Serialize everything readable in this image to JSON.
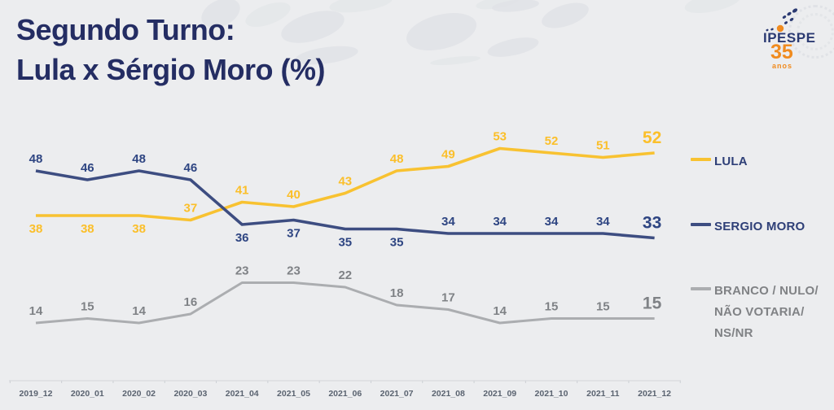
{
  "title": {
    "line1": "Segundo Turno:",
    "line2": "Lula x Sérgio Moro (%)"
  },
  "logo": {
    "text": "IPESPE",
    "number": "35",
    "suffix": "anos"
  },
  "colors": {
    "background": "#ecedef",
    "title": "#242d63",
    "axis_line": "#d8dade",
    "axis_tick": "#cdd0d4",
    "axis_text": "#5a6370",
    "logo_navy": "#2b3a72",
    "logo_orange": "#f08b1f"
  },
  "chart_data": {
    "type": "line",
    "title": "Segundo Turno: Lula x Sérgio Moro (%)",
    "categories": [
      "2019_12",
      "2020_01",
      "2020_02",
      "2020_03",
      "2021_04",
      "2021_05",
      "2021_06",
      "2021_07",
      "2021_08",
      "2021_09",
      "2021_10",
      "2021_11",
      "2021_12"
    ],
    "series": [
      {
        "name": "LULA",
        "color": "#f8c231",
        "label_color": "#fbbf2a",
        "values": [
          38,
          38,
          38,
          37,
          41,
          40,
          43,
          48,
          49,
          53,
          52,
          51,
          52
        ],
        "label_side": [
          "below",
          "below",
          "below",
          "above",
          "above",
          "above",
          "above",
          "above",
          "above",
          "above",
          "above",
          "above",
          "above"
        ]
      },
      {
        "name": "SERGIO MORO",
        "color": "#3d4d81",
        "label_color": "#2e4582",
        "values": [
          48,
          46,
          48,
          46,
          36,
          37,
          35,
          35,
          34,
          34,
          34,
          34,
          33
        ],
        "label_side": [
          "above",
          "above",
          "above",
          "above",
          "below",
          "below",
          "below",
          "below",
          "above",
          "above",
          "above",
          "above",
          "above"
        ]
      },
      {
        "name": "BRANCO / NULO/\nNÃO VOTARIA/\nNS/NR",
        "color": "#abadb0",
        "label_color": "#7f8286",
        "values": [
          14,
          15,
          14,
          16,
          23,
          23,
          22,
          18,
          17,
          14,
          15,
          15,
          15
        ],
        "label_side": [
          "above",
          "above",
          "above",
          "above",
          "above",
          "above",
          "above",
          "above",
          "above",
          "above",
          "above",
          "above",
          "above"
        ]
      }
    ],
    "ylim": [
      0,
      60
    ],
    "grid": false,
    "legend_position": "right",
    "x_axis_shown": true,
    "y_axis_shown": false
  },
  "legend": {
    "items": [
      {
        "label": "LULA"
      },
      {
        "label": "SERGIO MORO"
      },
      {
        "label": "BRANCO / NULO/\nNÃO VOTARIA/\nNS/NR"
      }
    ]
  }
}
